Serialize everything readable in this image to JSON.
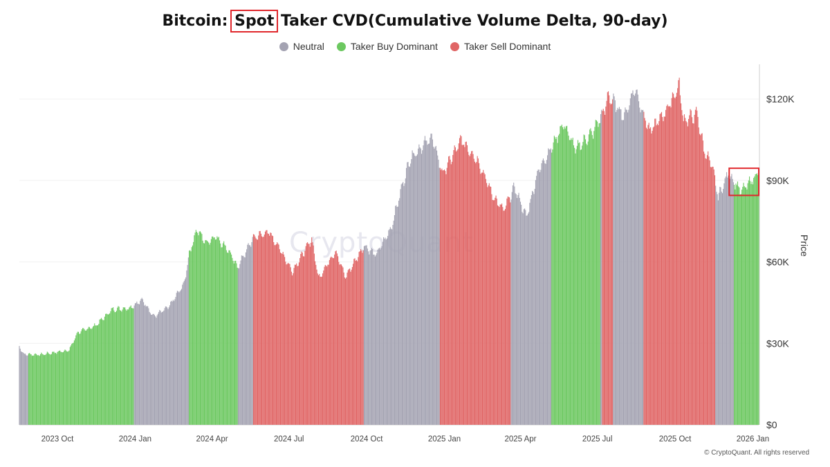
{
  "title_parts": {
    "before": "Bitcoin: ",
    "highlight": "Spot",
    "after": " Taker CVD(Cumulative Volume Delta, 90-day)"
  },
  "legend": [
    {
      "label": "Neutral",
      "color": "#a4a3b2"
    },
    {
      "label": "Taker Buy Dominant",
      "color": "#6cc860"
    },
    {
      "label": "Taker Sell Dominant",
      "color": "#e06565"
    }
  ],
  "watermark": "CryptoQuant",
  "copyright": "© CryptoQuant. All rights reserved",
  "colors": {
    "neutral": "#a4a3b2",
    "buy": "#6cc860",
    "sell": "#e06565",
    "highlight_box": "#e0262b",
    "grid": "#f0f0f0"
  },
  "chart_data": {
    "type": "bar",
    "title": "Bitcoin: Spot Taker CVD(Cumulative Volume Delta, 90-day)",
    "ylabel": "Price",
    "xlabel": "",
    "ylim": [
      0,
      131500
    ],
    "y_ticks": [
      {
        "value": 0,
        "label": "$0"
      },
      {
        "value": 30000,
        "label": "$30K"
      },
      {
        "value": 60000,
        "label": "$60K"
      },
      {
        "value": 90000,
        "label": "$90K"
      },
      {
        "value": 120000,
        "label": "$120K"
      }
    ],
    "x_range": [
      "2023-08-17",
      "2026-01-08"
    ],
    "x_ticks": [
      {
        "date": "2023-10-01",
        "label": "2023 Oct"
      },
      {
        "date": "2024-01-01",
        "label": "2024 Jan"
      },
      {
        "date": "2024-04-01",
        "label": "2024 Apr"
      },
      {
        "date": "2024-07-01",
        "label": "2024 Jul"
      },
      {
        "date": "2024-10-01",
        "label": "2024 Oct"
      },
      {
        "date": "2025-01-01",
        "label": "2025 Jan"
      },
      {
        "date": "2025-04-01",
        "label": "2025 Apr"
      },
      {
        "date": "2025-07-01",
        "label": "2025 Jul"
      },
      {
        "date": "2025-10-01",
        "label": "2025 Oct"
      },
      {
        "date": "2026-01-01",
        "label": "2026 Jan"
      }
    ],
    "price_path": [
      [
        "2023-08-17",
        29000
      ],
      [
        "2023-08-22",
        26000
      ],
      [
        "2023-09-10",
        25800
      ],
      [
        "2023-09-25",
        26500
      ],
      [
        "2023-10-15",
        27500
      ],
      [
        "2023-10-25",
        34000
      ],
      [
        "2023-11-15",
        36500
      ],
      [
        "2023-12-05",
        42500
      ],
      [
        "2023-12-25",
        43000
      ],
      [
        "2024-01-10",
        46000
      ],
      [
        "2024-01-23",
        39800
      ],
      [
        "2024-02-10",
        43500
      ],
      [
        "2024-02-28",
        52000
      ],
      [
        "2024-03-05",
        63000
      ],
      [
        "2024-03-14",
        72000
      ],
      [
        "2024-03-25",
        67000
      ],
      [
        "2024-04-05",
        69500
      ],
      [
        "2024-04-20",
        64500
      ],
      [
        "2024-05-01",
        58000
      ],
      [
        "2024-05-20",
        69000
      ],
      [
        "2024-06-07",
        71000
      ],
      [
        "2024-06-20",
        65000
      ],
      [
        "2024-07-05",
        56500
      ],
      [
        "2024-07-28",
        68500
      ],
      [
        "2024-08-05",
        54000
      ],
      [
        "2024-08-25",
        64000
      ],
      [
        "2024-09-06",
        54500
      ],
      [
        "2024-09-28",
        66000
      ],
      [
        "2024-10-12",
        62500
      ],
      [
        "2024-10-30",
        72500
      ],
      [
        "2024-11-12",
        88000
      ],
      [
        "2024-11-22",
        98500
      ],
      [
        "2024-12-17",
        106000
      ],
      [
        "2024-12-30",
        92500
      ],
      [
        "2025-01-21",
        105000
      ],
      [
        "2025-02-10",
        97000
      ],
      [
        "2025-02-28",
        84000
      ],
      [
        "2025-03-12",
        79000
      ],
      [
        "2025-03-25",
        87500
      ],
      [
        "2025-04-08",
        76500
      ],
      [
        "2025-04-22",
        93500
      ],
      [
        "2025-05-10",
        103500
      ],
      [
        "2025-05-22",
        111000
      ],
      [
        "2025-06-05",
        101500
      ],
      [
        "2025-06-25",
        107500
      ],
      [
        "2025-07-10",
        116500
      ],
      [
        "2025-07-14",
        121500
      ],
      [
        "2025-08-02",
        113500
      ],
      [
        "2025-08-14",
        124000
      ],
      [
        "2025-09-01",
        108000
      ],
      [
        "2025-09-20",
        115500
      ],
      [
        "2025-10-06",
        125000
      ],
      [
        "2025-10-11",
        112000
      ],
      [
        "2025-10-27",
        114500
      ],
      [
        "2025-11-04",
        101500
      ],
      [
        "2025-11-14",
        95000
      ],
      [
        "2025-11-21",
        84000
      ],
      [
        "2025-12-03",
        92500
      ],
      [
        "2025-12-18",
        86000
      ],
      [
        "2026-01-04",
        91500
      ],
      [
        "2026-01-08",
        93500
      ]
    ],
    "regimes": [
      {
        "start": "2023-08-17",
        "end": "2023-08-28",
        "state": "Neutral"
      },
      {
        "start": "2023-08-28",
        "end": "2023-12-31",
        "state": "Taker Buy Dominant"
      },
      {
        "start": "2023-12-31",
        "end": "2024-03-05",
        "state": "Neutral"
      },
      {
        "start": "2024-03-05",
        "end": "2024-05-02",
        "state": "Taker Buy Dominant"
      },
      {
        "start": "2024-05-02",
        "end": "2024-05-20",
        "state": "Neutral"
      },
      {
        "start": "2024-05-20",
        "end": "2024-09-28",
        "state": "Taker Sell Dominant"
      },
      {
        "start": "2024-09-28",
        "end": "2024-12-27",
        "state": "Neutral"
      },
      {
        "start": "2024-12-27",
        "end": "2025-03-21",
        "state": "Taker Sell Dominant"
      },
      {
        "start": "2025-03-21",
        "end": "2025-05-08",
        "state": "Neutral"
      },
      {
        "start": "2025-05-08",
        "end": "2025-07-05",
        "state": "Taker Buy Dominant"
      },
      {
        "start": "2025-07-05",
        "end": "2025-07-07",
        "state": "Neutral"
      },
      {
        "start": "2025-07-07",
        "end": "2025-07-20",
        "state": "Taker Sell Dominant"
      },
      {
        "start": "2025-07-20",
        "end": "2025-08-25",
        "state": "Neutral"
      },
      {
        "start": "2025-08-25",
        "end": "2025-11-18",
        "state": "Taker Sell Dominant"
      },
      {
        "start": "2025-11-18",
        "end": "2025-12-10",
        "state": "Neutral"
      },
      {
        "start": "2025-12-10",
        "end": "2026-01-08",
        "state": "Taker Buy Dominant"
      }
    ],
    "highlight_box": {
      "x_start": "2025-12-04",
      "x_end": "2026-01-08",
      "y_low": 84500,
      "y_high": 94500
    }
  }
}
